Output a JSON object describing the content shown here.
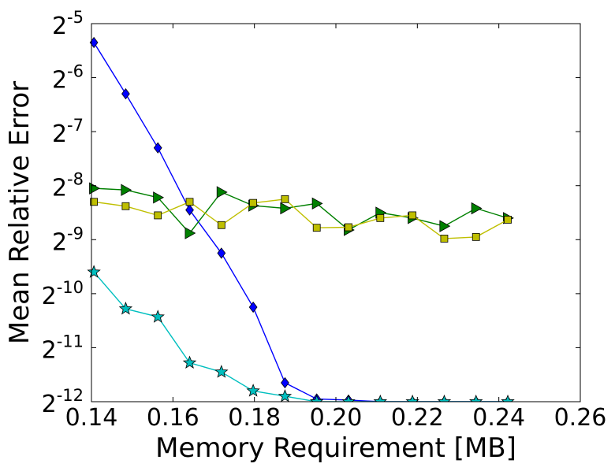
{
  "chart_data": {
    "type": "line",
    "title": "",
    "xlabel": "Memory Requirement [MB]",
    "ylabel": "Mean Relative Error",
    "xlim": [
      0.14,
      0.26
    ],
    "ylim_exponent": [
      -12,
      -5
    ],
    "y_scale": "log2",
    "grid": false,
    "x_ticks": [
      "0.14",
      "0.16",
      "0.18",
      "0.20",
      "0.22",
      "0.24",
      "0.26"
    ],
    "y_ticks": [
      {
        "base": "2",
        "exp": "-5"
      },
      {
        "base": "2",
        "exp": "-6"
      },
      {
        "base": "2",
        "exp": "-7"
      },
      {
        "base": "2",
        "exp": "-8"
      },
      {
        "base": "2",
        "exp": "-9"
      },
      {
        "base": "2",
        "exp": "-10"
      },
      {
        "base": "2",
        "exp": "-11"
      },
      {
        "base": "2",
        "exp": "-12"
      }
    ],
    "series": [
      {
        "color": "#0000ff",
        "marker": "diamond",
        "x": [
          0.1406,
          0.1484,
          0.1563,
          0.1641,
          0.1719,
          0.1797,
          0.1875,
          0.1953,
          0.2031,
          0.2109,
          0.2188,
          0.2266,
          0.2344,
          0.2422
        ],
        "y_exp": [
          -5.35,
          -6.3,
          -7.3,
          -8.45,
          -9.25,
          -10.25,
          -11.65,
          -11.95,
          -11.97,
          -12.0,
          -12.0,
          -12.0,
          -12.0,
          -12.0
        ]
      },
      {
        "color": "#008000",
        "marker": "triangle-right",
        "x": [
          0.1406,
          0.1484,
          0.1563,
          0.1641,
          0.1719,
          0.1797,
          0.1875,
          0.1953,
          0.2031,
          0.2109,
          0.2188,
          0.2266,
          0.2344,
          0.2422
        ],
        "y_exp": [
          -8.05,
          -8.08,
          -8.22,
          -8.88,
          -8.12,
          -8.37,
          -8.42,
          -8.33,
          -8.82,
          -8.5,
          -8.6,
          -8.75,
          -8.42,
          -8.6
        ]
      },
      {
        "color": "#bfbf00",
        "marker": "square",
        "x": [
          0.1406,
          0.1484,
          0.1563,
          0.1641,
          0.1719,
          0.1797,
          0.1875,
          0.1953,
          0.2031,
          0.2109,
          0.2188,
          0.2266,
          0.2344,
          0.2422
        ],
        "y_exp": [
          -8.3,
          -8.38,
          -8.55,
          -8.3,
          -8.73,
          -8.32,
          -8.25,
          -8.78,
          -8.77,
          -8.6,
          -8.55,
          -8.98,
          -8.95,
          -8.63
        ]
      },
      {
        "color": "#00bfbf",
        "marker": "star",
        "x": [
          0.1406,
          0.1484,
          0.1563,
          0.1641,
          0.1719,
          0.1797,
          0.1875,
          0.1953,
          0.2031,
          0.2109,
          0.2188,
          0.2266,
          0.2344,
          0.2422
        ],
        "y_exp": [
          -9.6,
          -10.28,
          -10.43,
          -11.28,
          -11.45,
          -11.8,
          -11.9,
          -12.0,
          -12.0,
          -12.0,
          -12.0,
          -12.0,
          -12.0,
          -12.0
        ]
      }
    ]
  }
}
